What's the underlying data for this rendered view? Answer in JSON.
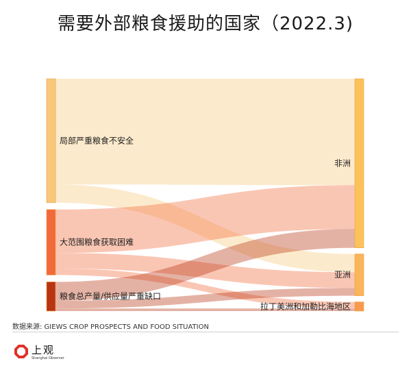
{
  "title": "需要外部粮食援助的国家（2022.3)",
  "source": "数据来源: GIEWS CROP PROSPECTS AND FOOD SITUATION",
  "logo": {
    "text": "上观",
    "subtext": "Shanghai Observer"
  },
  "chart_data": {
    "type": "sankey",
    "sources": [
      {
        "name": "局部严重粮食不安全",
        "color": "#f8c77a"
      },
      {
        "name": "大范围粮食获取困难",
        "color": "#f26a3a"
      },
      {
        "name": "粮食总产量/供应量严重缺口",
        "color": "#b83413"
      }
    ],
    "targets": [
      {
        "name": "非洲",
        "color": "#fdc25a"
      },
      {
        "name": "亚洲",
        "color": "#fbb55a"
      },
      {
        "name": "拉丁美洲和加勒比海地区",
        "color": "#f89a4e"
      }
    ],
    "links": [
      {
        "source": "局部严重粮食不安全",
        "target": "非洲",
        "value": 16.3
      },
      {
        "source": "局部严重粮食不安全",
        "target": "亚洲",
        "value": 2.8
      },
      {
        "source": "大范围粮食获取困难",
        "target": "非洲",
        "value": 6.7
      },
      {
        "source": "大范围粮食获取困难",
        "target": "亚洲",
        "value": 2.4
      },
      {
        "source": "大范围粮食获取困难",
        "target": "拉丁美洲和加勒比海地区",
        "value": 1.0
      },
      {
        "source": "粮食总产量/供应量严重缺口",
        "target": "非洲",
        "value": 2.9
      },
      {
        "source": "粮食总产量/供应量严重缺口",
        "target": "亚洲",
        "value": 1.2
      },
      {
        "source": "粮食总产量/供应量严重缺口",
        "target": "拉丁美洲和加勒比海地区",
        "value": 0.4
      }
    ]
  }
}
